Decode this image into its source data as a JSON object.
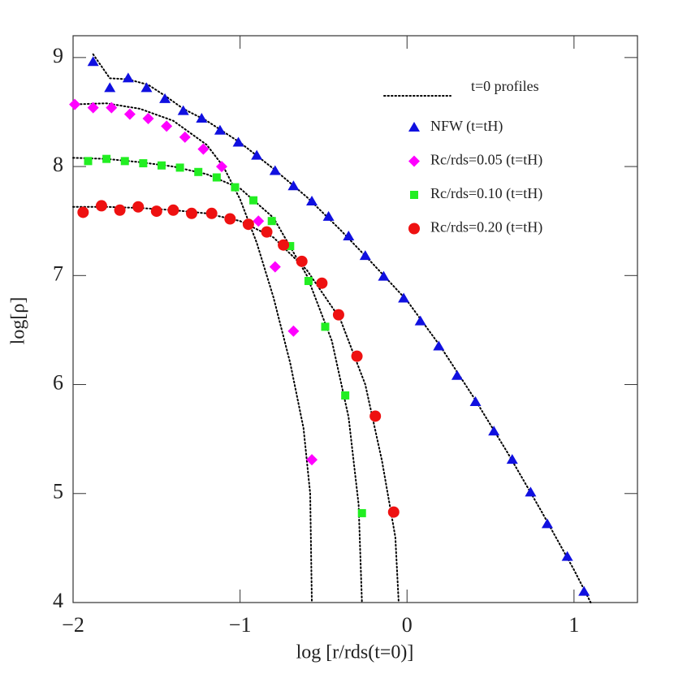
{
  "chart_data": {
    "type": "scatter",
    "x_label": "log [r/rds(t=0)]",
    "y_label": "log[ρ]",
    "xlim": [
      -2,
      1.38
    ],
    "ylim": [
      4,
      9.2
    ],
    "xticks": [
      {
        "value": -2,
        "label": "−2"
      },
      {
        "value": -1,
        "label": "−1"
      },
      0,
      1
    ],
    "yticks": [
      4,
      5,
      6,
      7,
      8,
      9
    ],
    "profiles": {
      "name": "t=0 profiles",
      "color": "#000000",
      "lines": [
        {
          "x": [
            -1.88,
            -1.78,
            -1.67,
            -1.55,
            -1.45,
            -1.34,
            -1.2,
            -1.0,
            -0.8,
            -0.6,
            -0.4,
            -0.2,
            0,
            0.2,
            0.4,
            0.6,
            0.8,
            1.0,
            1.1
          ],
          "values": [
            9.03,
            8.81,
            8.8,
            8.75,
            8.65,
            8.53,
            8.42,
            8.22,
            7.98,
            7.72,
            7.42,
            7.1,
            6.77,
            6.35,
            5.88,
            5.38,
            4.85,
            4.3,
            4.0
          ]
        },
        {
          "x": [
            -2,
            -1.8,
            -1.6,
            -1.4,
            -1.2,
            -1.1,
            -1.0,
            -0.9,
            -0.8,
            -0.7,
            -0.62,
            -0.58,
            -0.57
          ],
          "values": [
            8.57,
            8.58,
            8.53,
            8.42,
            8.2,
            8.0,
            7.7,
            7.3,
            6.8,
            6.2,
            5.6,
            5.0,
            4.0
          ]
        },
        {
          "x": [
            -2,
            -1.8,
            -1.6,
            -1.4,
            -1.2,
            -1.0,
            -0.8,
            -0.6,
            -0.45,
            -0.35,
            -0.29,
            -0.27
          ],
          "values": [
            8.08,
            8.07,
            8.04,
            8.0,
            7.93,
            7.8,
            7.53,
            7.0,
            6.4,
            5.7,
            4.9,
            4.0
          ]
        },
        {
          "x": [
            -2,
            -1.8,
            -1.6,
            -1.4,
            -1.2,
            -1.0,
            -0.8,
            -0.6,
            -0.4,
            -0.25,
            -0.15,
            -0.07,
            -0.05
          ],
          "values": [
            7.63,
            7.63,
            7.62,
            7.6,
            7.57,
            7.5,
            7.35,
            7.05,
            6.6,
            6.0,
            5.3,
            4.6,
            4.0
          ]
        }
      ]
    },
    "series": [
      {
        "name": "NFW (t=tH)",
        "color": "#1010e0",
        "marker": "triangle",
        "x": [
          -1.88,
          -1.78,
          -1.67,
          -1.56,
          -1.45,
          -1.34,
          -1.23,
          -1.12,
          -1.01,
          -0.9,
          -0.79,
          -0.68,
          -0.57,
          -0.47,
          -0.35,
          -0.25,
          -0.14,
          -0.02,
          0.08,
          0.19,
          0.3,
          0.41,
          0.52,
          0.63,
          0.74,
          0.84,
          0.96,
          1.06
        ],
        "values": [
          8.96,
          8.72,
          8.81,
          8.72,
          8.62,
          8.51,
          8.44,
          8.33,
          8.22,
          8.1,
          7.96,
          7.82,
          7.68,
          7.54,
          7.36,
          7.18,
          6.99,
          6.79,
          6.58,
          6.35,
          6.08,
          5.84,
          5.57,
          5.31,
          5.01,
          4.72,
          4.42,
          4.1
        ]
      },
      {
        "name": "Rc/rds=0.05 (t=tH)",
        "color": "#ff00ff",
        "marker": "diamond",
        "x": [
          -1.99,
          -1.88,
          -1.77,
          -1.66,
          -1.55,
          -1.44,
          -1.33,
          -1.22,
          -1.11,
          -0.89,
          -0.79,
          -0.68,
          -0.57
        ],
        "values": [
          8.57,
          8.54,
          8.54,
          8.48,
          8.44,
          8.37,
          8.27,
          8.16,
          8.0,
          7.5,
          7.08,
          6.49,
          5.31
        ]
      },
      {
        "name": "Rc/rds=0.10 (t=tH)",
        "color": "#22ee22",
        "marker": "square",
        "x": [
          -1.91,
          -1.8,
          -1.69,
          -1.58,
          -1.47,
          -1.36,
          -1.25,
          -1.14,
          -1.03,
          -0.92,
          -0.81,
          -0.7,
          -0.59,
          -0.49,
          -0.37,
          -0.27
        ],
        "values": [
          8.05,
          8.07,
          8.05,
          8.03,
          8.01,
          7.99,
          7.95,
          7.9,
          7.81,
          7.69,
          7.5,
          7.27,
          6.95,
          6.53,
          5.9,
          4.82
        ]
      },
      {
        "name": "Rc/rds=0.20 (t=tH)",
        "color": "#ee1111",
        "marker": "circle",
        "x": [
          -1.94,
          -1.83,
          -1.72,
          -1.61,
          -1.5,
          -1.4,
          -1.29,
          -1.17,
          -1.06,
          -0.95,
          -0.84,
          -0.74,
          -0.63,
          -0.51,
          -0.41,
          -0.3,
          -0.19,
          -0.08
        ],
        "values": [
          7.58,
          7.64,
          7.6,
          7.63,
          7.59,
          7.6,
          7.57,
          7.57,
          7.52,
          7.47,
          7.4,
          7.28,
          7.13,
          6.93,
          6.64,
          6.26,
          5.71,
          4.83
        ]
      }
    ]
  }
}
